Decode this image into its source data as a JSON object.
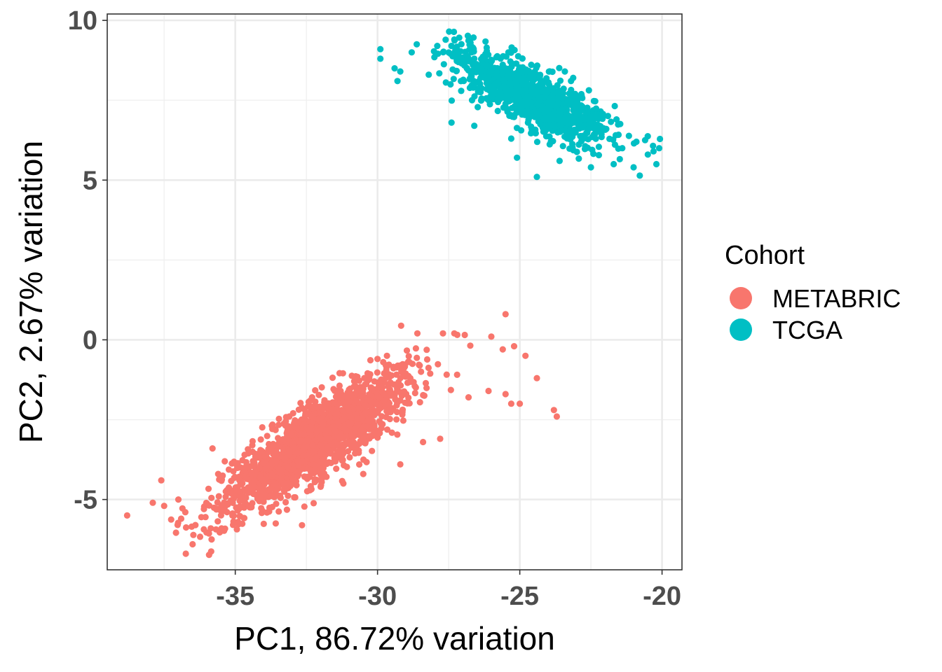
{
  "chart_data": {
    "type": "scatter",
    "title": "",
    "xlabel": "PC1, 86.72% variation",
    "ylabel": "PC2, 2.67% variation",
    "xlim": [
      -39.5,
      -19.3
    ],
    "ylim": [
      -7.2,
      10.2
    ],
    "x_ticks": [
      -35,
      -30,
      -25,
      -20
    ],
    "y_ticks": [
      -5,
      0,
      5,
      10
    ],
    "x_tick_labels": [
      "-35",
      "-30",
      "-25",
      "-20"
    ],
    "y_tick_labels": [
      "-5",
      "0",
      "5",
      "10"
    ],
    "grid": true,
    "legend": {
      "title": "Cohort",
      "position": "right"
    },
    "series": [
      {
        "name": "METABRIC",
        "color": "#F8766D",
        "approx_count": 1900,
        "cluster_center": [
          -32.2,
          -3.2
        ],
        "points": [
          [
            -38.8,
            -5.5
          ],
          [
            -37.9,
            -5.1
          ],
          [
            -37.6,
            -4.4
          ],
          [
            -37.5,
            -5.2
          ],
          [
            -37.0,
            -5.0
          ],
          [
            -36.9,
            -5.6
          ],
          [
            -36.5,
            -6.4
          ],
          [
            -36.4,
            -5.8
          ],
          [
            -36.1,
            -5.3
          ],
          [
            -35.8,
            -3.4
          ],
          [
            -35.6,
            -4.2
          ],
          [
            -35.1,
            -5.5
          ],
          [
            -34.9,
            -5.7
          ],
          [
            -34.6,
            -4.0
          ],
          [
            -34.4,
            -3.3
          ],
          [
            -33.6,
            -2.8
          ],
          [
            -33.1,
            -2.4
          ],
          [
            -32.3,
            -1.8
          ],
          [
            -32.0,
            -4.6
          ],
          [
            -31.2,
            -4.5
          ],
          [
            -30.5,
            -4.2
          ],
          [
            -30.0,
            -0.6
          ],
          [
            -29.8,
            -0.7
          ],
          [
            -29.2,
            -3.9
          ],
          [
            -28.6,
            0.2
          ],
          [
            -28.4,
            -3.2
          ],
          [
            -27.8,
            -3.1
          ],
          [
            -27.3,
            0.2
          ],
          [
            -26.8,
            -1.8
          ],
          [
            -26.1,
            -1.6
          ],
          [
            -26.0,
            0.1
          ],
          [
            -25.6,
            -0.3
          ],
          [
            -25.2,
            -0.2
          ],
          [
            -24.8,
            -0.5
          ],
          [
            -24.4,
            -1.2
          ],
          [
            -25.5,
            -1.7
          ],
          [
            -25.3,
            -2.0
          ],
          [
            -25.0,
            -2.0
          ],
          [
            -23.8,
            -2.2
          ],
          [
            -23.7,
            -2.4
          ],
          [
            -25.5,
            0.8
          ]
        ]
      },
      {
        "name": "TCGA",
        "color": "#00BFC4",
        "approx_count": 1050,
        "cluster_center": [
          -24.6,
          7.6
        ],
        "points": [
          [
            -29.9,
            9.1
          ],
          [
            -29.9,
            8.8
          ],
          [
            -29.4,
            8.5
          ],
          [
            -29.2,
            8.4
          ],
          [
            -29.3,
            8.1
          ],
          [
            -28.8,
            9.0
          ],
          [
            -28.2,
            8.3
          ],
          [
            -27.9,
            9.2
          ],
          [
            -27.3,
            9.4
          ],
          [
            -27.4,
            6.8
          ],
          [
            -26.6,
            8.8
          ],
          [
            -25.4,
            9.0
          ],
          [
            -25.3,
            6.3
          ],
          [
            -25.1,
            5.7
          ],
          [
            -24.4,
            5.1
          ],
          [
            -23.6,
            5.6
          ],
          [
            -22.5,
            5.4
          ],
          [
            -21.7,
            5.5
          ],
          [
            -21.4,
            6.0
          ],
          [
            -21.0,
            5.4
          ],
          [
            -20.9,
            6.2
          ],
          [
            -20.5,
            5.8
          ],
          [
            -20.3,
            5.9
          ],
          [
            -20.2,
            5.5
          ],
          [
            -20.1,
            6.0
          ],
          [
            -22.2,
            6.7
          ],
          [
            -21.6,
            6.9
          ],
          [
            -22.8,
            7.3
          ],
          [
            -23.2,
            8.1
          ],
          [
            -26.6,
            6.7
          ]
        ]
      }
    ]
  }
}
